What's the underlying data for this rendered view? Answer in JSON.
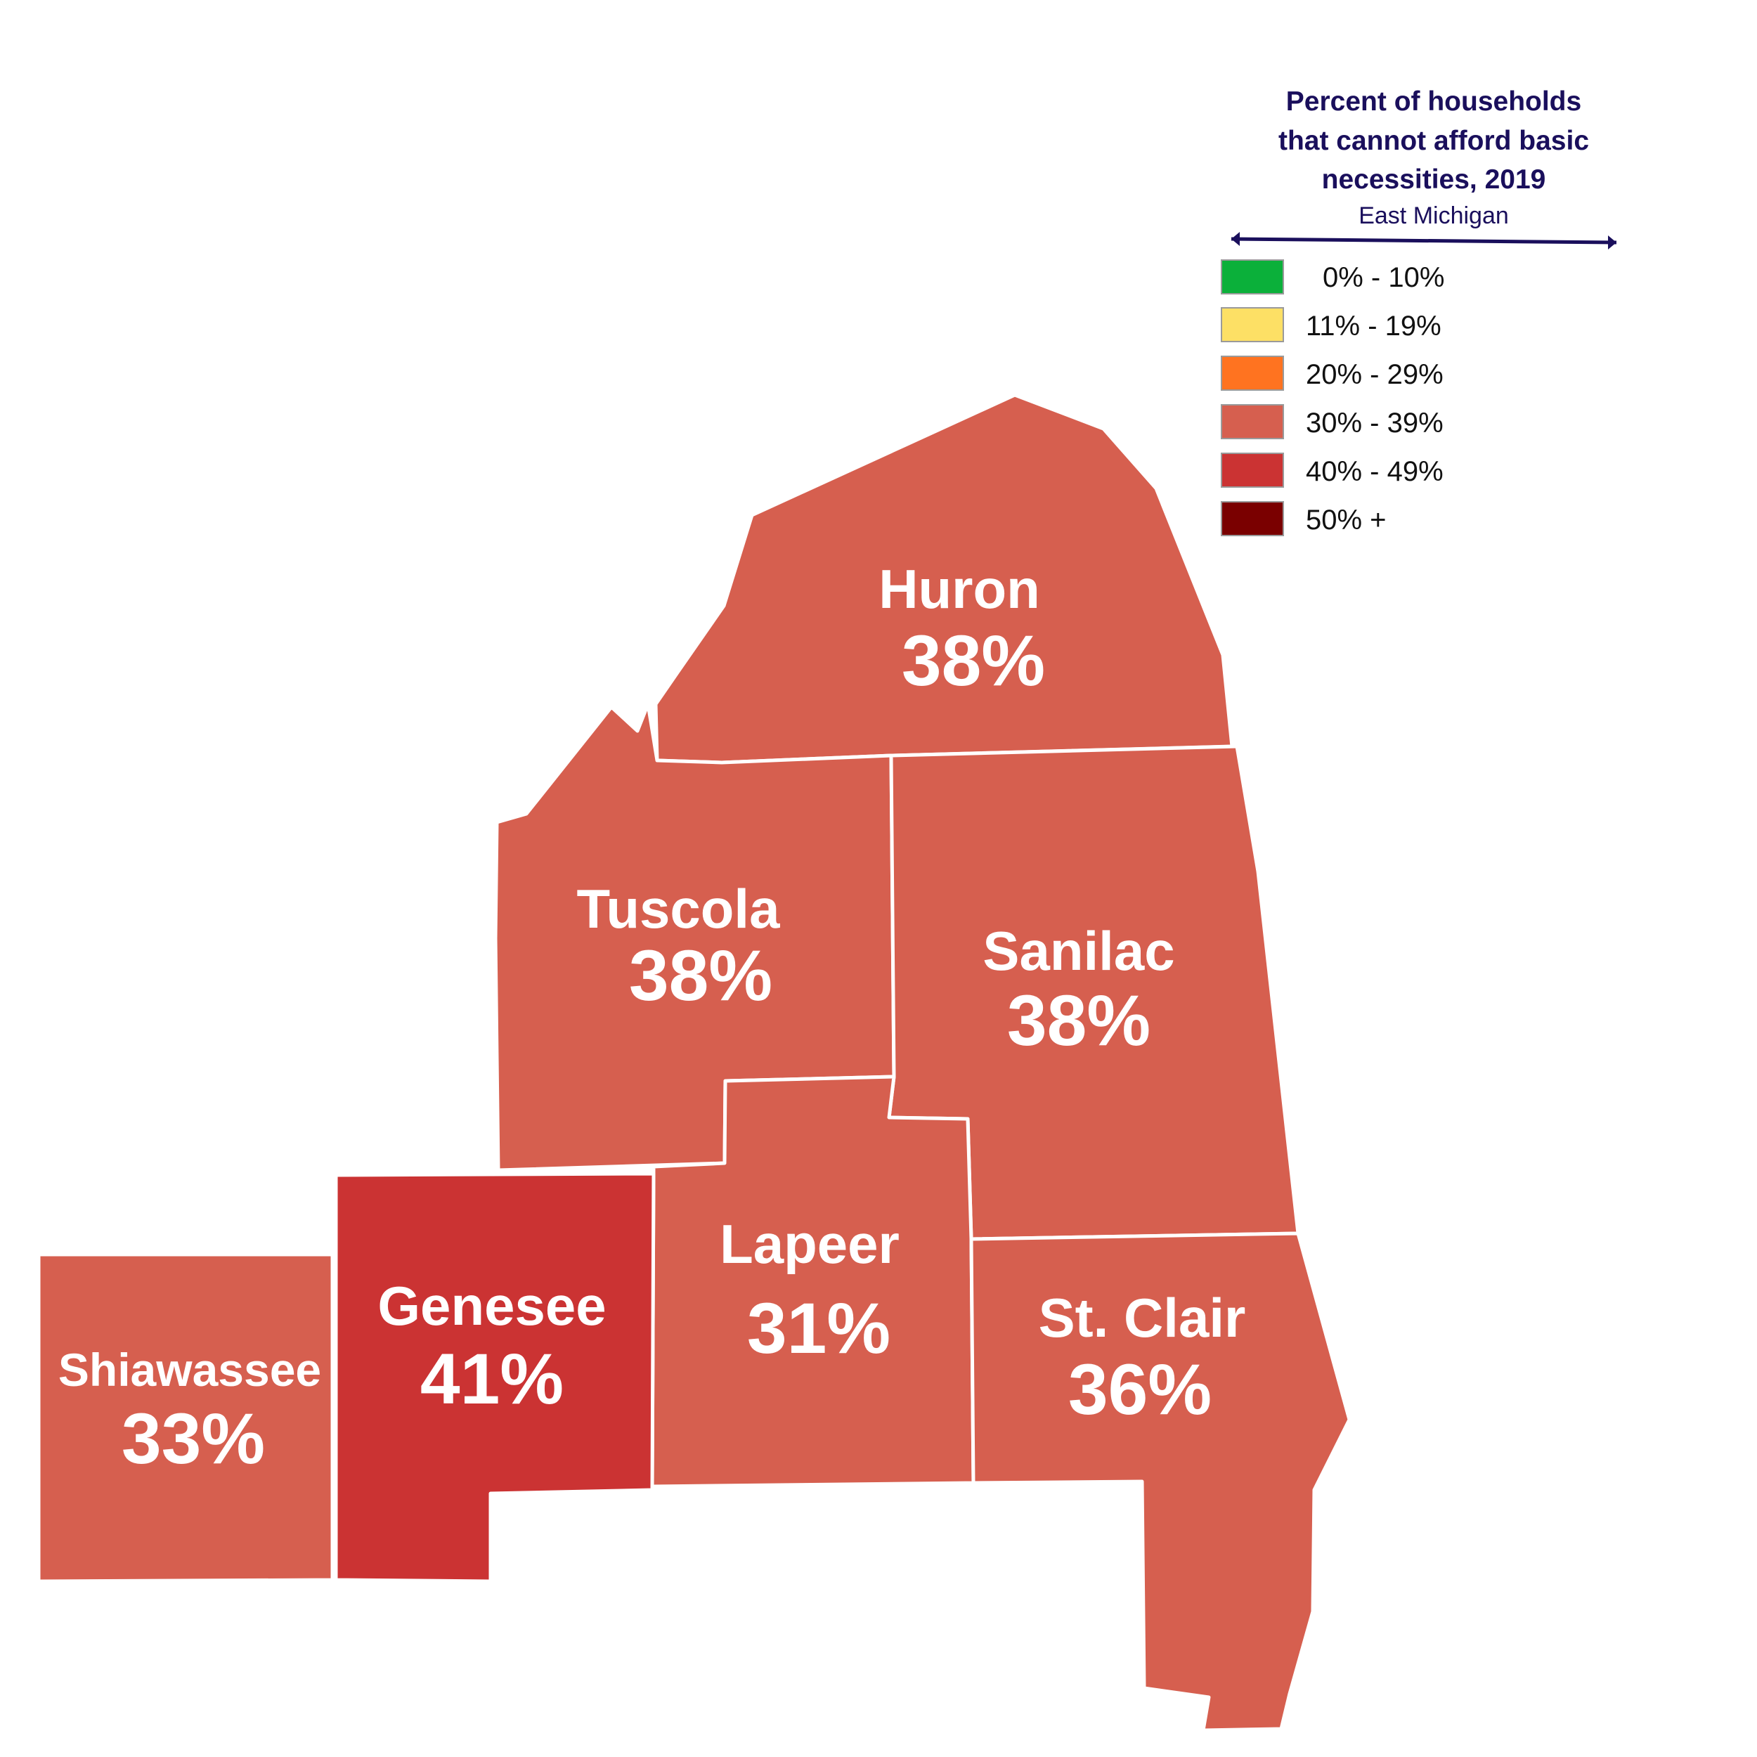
{
  "legend": {
    "title_lines": [
      "Percent of households",
      "that cannot afford basic",
      "necessities, 2019"
    ],
    "subtitle": "East Michigan",
    "items": [
      {
        "label": "0% - 10%",
        "color": "#0bb03a"
      },
      {
        "label": "11% - 19%",
        "color": "#fde065"
      },
      {
        "label": "20% - 29%",
        "color": "#ff7320"
      },
      {
        "label": "30% - 39%",
        "color": "#d65f4f"
      },
      {
        "label": "40% - 49%",
        "color": "#cb3333"
      },
      {
        "label": "50% +",
        "color": "#7a0000"
      }
    ]
  },
  "counties": [
    {
      "id": "huron",
      "name": "Huron",
      "value": "38%",
      "color": "#d65f4f"
    },
    {
      "id": "tuscola",
      "name": "Tuscola",
      "value": "38%",
      "color": "#d65f4f"
    },
    {
      "id": "sanilac",
      "name": "Sanilac",
      "value": "38%",
      "color": "#d65f4f"
    },
    {
      "id": "lapeer",
      "name": "Lapeer",
      "value": "31%",
      "color": "#d65f4f"
    },
    {
      "id": "genesee",
      "name": "Genesee",
      "value": "41%",
      "color": "#cb3333"
    },
    {
      "id": "shiawassee",
      "name": "Shiawassee",
      "value": "33%",
      "color": "#d65f4f"
    },
    {
      "id": "st-clair",
      "name": "St. Clair",
      "value": "36%",
      "color": "#d65f4f"
    }
  ]
}
